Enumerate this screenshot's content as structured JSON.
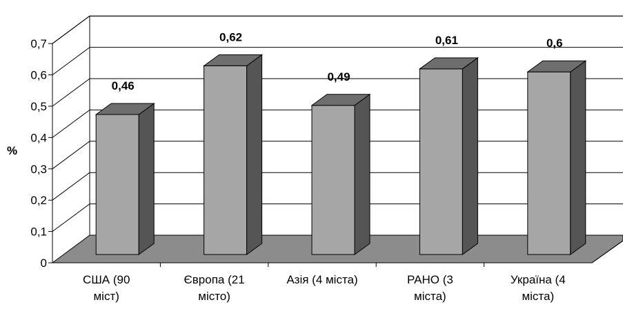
{
  "chart_data": {
    "type": "bar",
    "style": "3d-column",
    "categories": [
      [
        "США (90",
        "міст)"
      ],
      [
        "Європа (21",
        "місто)"
      ],
      [
        "Азія (4 міста)"
      ],
      [
        "РАНО (3",
        "міста)"
      ],
      [
        "Україна (4",
        "міста)"
      ]
    ],
    "values": [
      0.46,
      0.62,
      0.49,
      0.61,
      0.6
    ],
    "data_labels": [
      "0,46",
      "0,62",
      "0,49",
      "0,61",
      "0,6"
    ],
    "ylabel": "%",
    "ylim": [
      0,
      0.7
    ],
    "yticks": [
      0,
      0.1,
      0.2,
      0.3,
      0.4,
      0.5,
      0.6,
      0.7
    ],
    "ytick_labels": [
      "0",
      "0,1",
      "0,2",
      "0,3",
      "0,4",
      "0,5",
      "0,6",
      "0,7"
    ],
    "grid": true,
    "legend": "none",
    "colors": {
      "bar_front": "#a6a6a6",
      "bar_side": "#555555",
      "bar_top": "#6e6e6e",
      "floor": "#8c8c8c",
      "grid": "#000000"
    }
  }
}
